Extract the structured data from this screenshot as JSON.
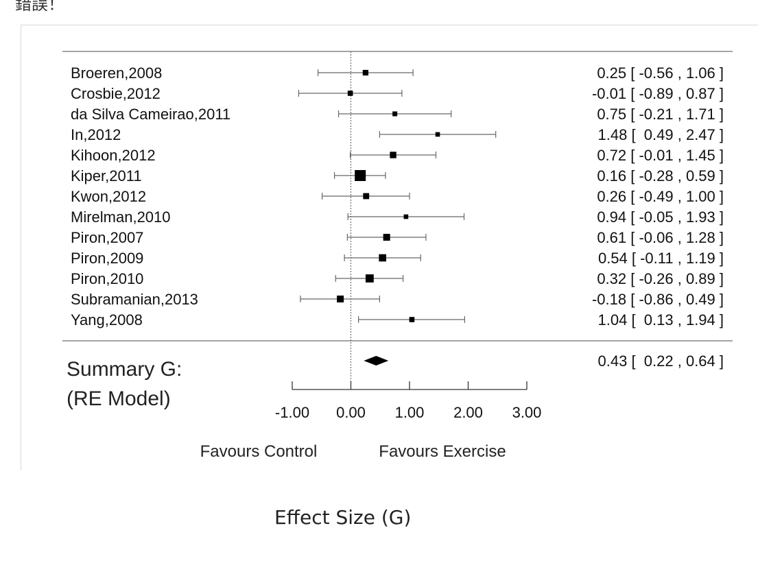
{
  "page": {
    "top_fragment": "錯誤！",
    "caption": "Effect Size (G)"
  },
  "chart_data": {
    "type": "forest",
    "title": "",
    "xlabel": "Effect Size (G)",
    "xlim": [
      -1.0,
      3.0
    ],
    "xticks": [
      -1.0,
      0.0,
      1.0,
      2.0,
      3.0
    ],
    "xtick_labels": [
      "-1.00",
      "0.00",
      "1.00",
      "2.00",
      "3.00"
    ],
    "reference_line": 0.0,
    "studies": [
      {
        "name": "Broeren,2008",
        "g": 0.25,
        "lo": -0.56,
        "hi": 1.06,
        "ci_text": "0.25 [ -0.56 , 1.06 ]",
        "weight": 0.35
      },
      {
        "name": "Crosbie,2012",
        "g": -0.01,
        "lo": -0.89,
        "hi": 0.87,
        "ci_text": "-0.01 [ -0.89 , 0.87 ]",
        "weight": 0.3
      },
      {
        "name": "da Silva Cameirao,2011",
        "g": 0.75,
        "lo": -0.21,
        "hi": 1.71,
        "ci_text": "0.75 [ -0.21 , 1.71 ]",
        "weight": 0.25
      },
      {
        "name": "In,2012",
        "g": 1.48,
        "lo": 0.49,
        "hi": 2.47,
        "ci_text": "1.48 [  0.49 , 2.47 ]",
        "weight": 0.22
      },
      {
        "name": "Kihoon,2012",
        "g": 0.72,
        "lo": -0.01,
        "hi": 1.45,
        "ci_text": "0.72 [ -0.01 , 1.45 ]",
        "weight": 0.45
      },
      {
        "name": "Kiper,2011",
        "g": 0.16,
        "lo": -0.28,
        "hi": 0.59,
        "ci_text": "0.16 [ -0.28 , 0.59 ]",
        "weight": 1.0
      },
      {
        "name": "Kwon,2012",
        "g": 0.26,
        "lo": -0.49,
        "hi": 1.0,
        "ci_text": "0.26 [ -0.49 , 1.00 ]",
        "weight": 0.4
      },
      {
        "name": "Mirelman,2010",
        "g": 0.94,
        "lo": -0.05,
        "hi": 1.93,
        "ci_text": "0.94 [ -0.05 , 1.93 ]",
        "weight": 0.22
      },
      {
        "name": "Piron,2007",
        "g": 0.61,
        "lo": -0.06,
        "hi": 1.28,
        "ci_text": "0.61 [ -0.06 , 1.28 ]",
        "weight": 0.5
      },
      {
        "name": "Piron,2009",
        "g": 0.54,
        "lo": -0.11,
        "hi": 1.19,
        "ci_text": "0.54 [ -0.11 , 1.19 ]",
        "weight": 0.55
      },
      {
        "name": "Piron,2010",
        "g": 0.32,
        "lo": -0.26,
        "hi": 0.89,
        "ci_text": "0.32 [ -0.26 , 0.89 ]",
        "weight": 0.65
      },
      {
        "name": "Subramanian,2013",
        "g": -0.18,
        "lo": -0.86,
        "hi": 0.49,
        "ci_text": "-0.18 [ -0.86 , 0.49 ]",
        "weight": 0.5
      },
      {
        "name": "Yang,2008",
        "g": 1.04,
        "lo": 0.13,
        "hi": 1.94,
        "ci_text": "1.04 [  0.13 , 1.94 ]",
        "weight": 0.3
      }
    ],
    "summary": {
      "label_line1": "Summary G:",
      "label_line2": "(RE Model)",
      "g": 0.43,
      "lo": 0.22,
      "hi": 0.64,
      "ci_text": "0.43 [  0.22 , 0.64 ]"
    },
    "direction_labels": {
      "left": "Favours Control",
      "right": "Favours Exercise"
    }
  }
}
